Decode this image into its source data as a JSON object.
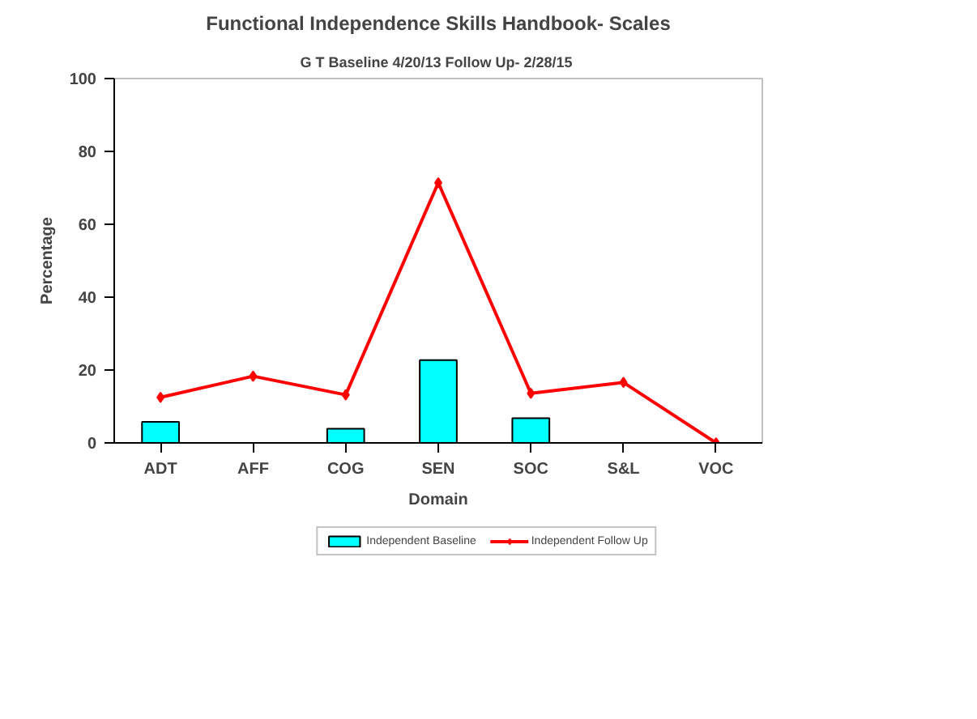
{
  "chart_data": {
    "type": "bar",
    "title": "Functional Independence Skills Handbook- Scales",
    "subtitle": "G T  Baseline 4/20/13 Follow Up- 2/28/15",
    "xlabel": "Domain",
    "ylabel": "Percentage",
    "categories": [
      "ADT",
      "AFF",
      "COG",
      "SEN",
      "SOC",
      "S&L",
      "VOC"
    ],
    "series": [
      {
        "name": "Independent Baseline",
        "color": "#00ffff",
        "values": [
          5.8,
          0,
          3.9,
          22.7,
          6.8,
          0,
          0
        ]
      },
      {
        "name": "Independent Follow Up",
        "type": "line",
        "color": "#ff0000",
        "marker": "diamond",
        "values": [
          12.5,
          18.3,
          13.2,
          71.4,
          13.6,
          16.6,
          0
        ]
      }
    ],
    "ylim": [
      0,
      100
    ],
    "yticks": [
      0,
      20,
      40,
      60,
      80,
      100
    ],
    "grid": false,
    "legend": "bottom"
  }
}
